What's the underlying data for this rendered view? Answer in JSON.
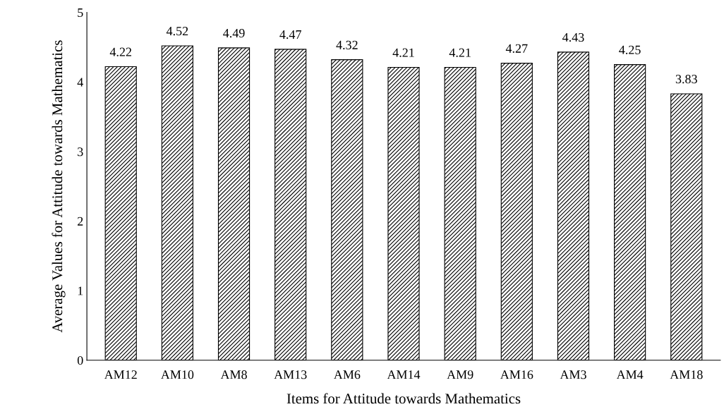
{
  "chart_data": {
    "type": "bar",
    "xlabel": "Items for Attitude towards Mathematics",
    "ylabel": "Average Values for Attitude towards Mathematics",
    "categories": [
      "AM12",
      "AM10",
      "AM8",
      "AM13",
      "AM6",
      "AM14",
      "AM9",
      "AM16",
      "AM3",
      "AM4",
      "AM18"
    ],
    "values": [
      4.22,
      4.52,
      4.49,
      4.47,
      4.32,
      4.21,
      4.21,
      4.27,
      4.43,
      4.25,
      3.83
    ],
    "color": "#000000",
    "ylim": [
      0,
      5
    ],
    "yticks": [
      0,
      1,
      2,
      3,
      4,
      5
    ],
    "data_labels": true,
    "grid": false,
    "legend": false
  }
}
